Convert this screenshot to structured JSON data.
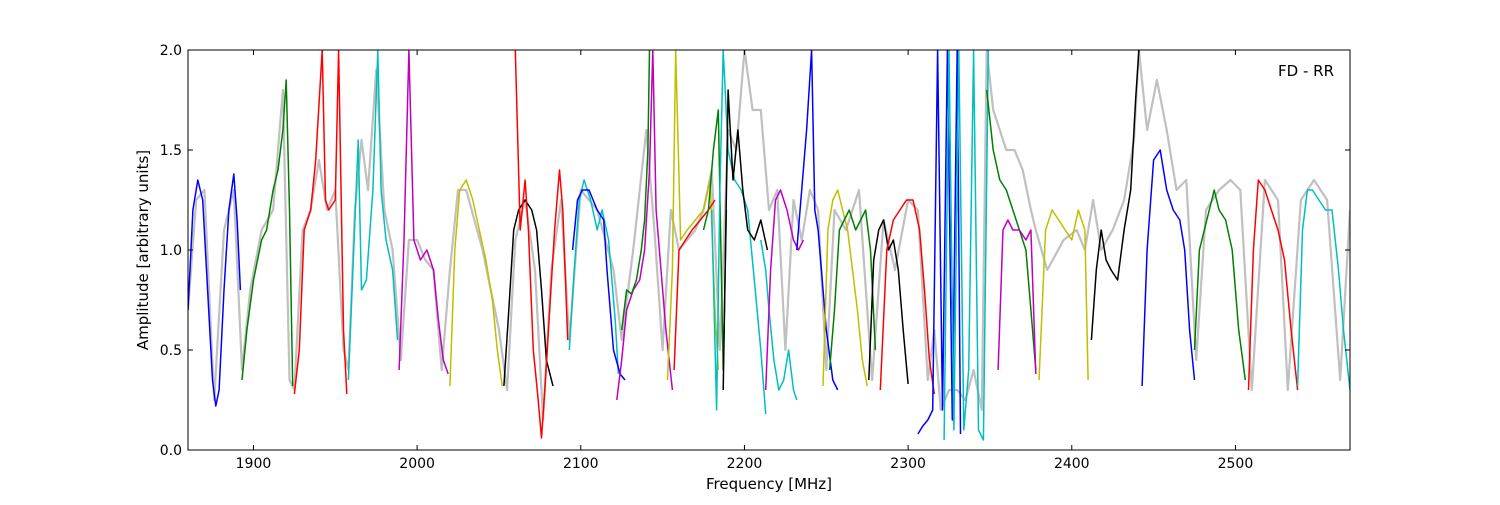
{
  "chart_data": {
    "type": "line",
    "title": "",
    "annotation": "FD - RR",
    "xlabel": "Frequency [MHz]",
    "ylabel": "Amplitude [arbitrary units]",
    "xlim": [
      1860,
      2570
    ],
    "ylim": [
      0.0,
      2.0
    ],
    "xticks": [
      1900,
      2000,
      2100,
      2200,
      2300,
      2400,
      2500
    ],
    "yticks": [
      0.0,
      0.5,
      1.0,
      1.5,
      2.0
    ],
    "xtick_labels": [
      "1900",
      "2000",
      "2100",
      "2200",
      "2300",
      "2400",
      "2500"
    ],
    "ytick_labels": [
      "0.0",
      "0.5",
      "1.0",
      "1.5",
      "2.0"
    ],
    "grid": false,
    "colors": {
      "background": "#c0c0c0",
      "blue": "#0000ff",
      "green": "#007f00",
      "red": "#ff0000",
      "cyan": "#00bfbf",
      "magenta": "#bf00bf",
      "yellow": "#bfbf00",
      "black": "#000000"
    },
    "background_trace": {
      "x": [
        1860,
        1865,
        1870,
        1876,
        1882,
        1888,
        1893,
        1898,
        1905,
        1912,
        1918,
        1922,
        1925,
        1930,
        1935,
        1940,
        1945,
        1950,
        1955,
        1958,
        1962,
        1966,
        1970,
        1975,
        1980,
        1985,
        1990,
        1995,
        2000,
        2005,
        2010,
        2015,
        2020,
        2025,
        2030,
        2040,
        2050,
        2055,
        2060,
        2066,
        2072,
        2077,
        2082,
        2088,
        2093,
        2100,
        2110,
        2120,
        2125,
        2132,
        2140,
        2145,
        2150,
        2155,
        2160,
        2165,
        2170,
        2175,
        2180,
        2185,
        2190,
        2195,
        2200,
        2205,
        2210,
        2215,
        2220,
        2225,
        2230,
        2235,
        2240,
        2245,
        2250,
        2255,
        2262,
        2270,
        2278,
        2285,
        2292,
        2300,
        2306,
        2312,
        2316,
        2320,
        2325,
        2330,
        2335,
        2340,
        2345,
        2348,
        2352,
        2356,
        2360,
        2365,
        2370,
        2375,
        2378,
        2385,
        2395,
        2403,
        2408,
        2413,
        2418,
        2425,
        2432,
        2438,
        2441,
        2446,
        2452,
        2458,
        2464,
        2470,
        2476,
        2482,
        2490,
        2497,
        2503,
        2510,
        2518,
        2526,
        2532,
        2540,
        2548,
        2556,
        2564,
        2570
      ],
      "y": [
        0.7,
        1.25,
        1.3,
        0.25,
        1.1,
        1.3,
        0.4,
        0.8,
        1.1,
        1.2,
        1.8,
        0.35,
        0.3,
        1.1,
        1.2,
        1.45,
        1.2,
        1.3,
        0.5,
        0.4,
        1.2,
        1.55,
        1.3,
        1.9,
        1.2,
        1.0,
        0.45,
        1.05,
        1.05,
        0.95,
        0.9,
        0.4,
        0.9,
        1.3,
        1.3,
        1.0,
        0.6,
        0.3,
        1.05,
        1.25,
        0.9,
        0.15,
        0.9,
        1.25,
        0.55,
        1.3,
        1.2,
        0.9,
        0.55,
        1.0,
        1.6,
        1.1,
        0.5,
        1.2,
        1.0,
        1.05,
        1.1,
        1.2,
        1.4,
        0.5,
        1.6,
        1.5,
        2.0,
        1.7,
        1.7,
        1.2,
        1.3,
        0.5,
        1.25,
        1.05,
        1.3,
        1.2,
        0.4,
        1.2,
        1.1,
        1.3,
        0.35,
        1.15,
        0.9,
        1.25,
        1.2,
        0.35,
        0.6,
        0.2,
        0.3,
        0.3,
        0.25,
        0.4,
        0.2,
        2.0,
        1.7,
        1.6,
        1.5,
        1.5,
        1.4,
        1.2,
        1.1,
        0.9,
        1.05,
        1.1,
        1.0,
        1.25,
        1.0,
        1.1,
        1.25,
        1.55,
        2.0,
        1.6,
        1.85,
        1.6,
        1.3,
        1.35,
        0.45,
        1.2,
        1.3,
        1.35,
        1.3,
        0.3,
        1.35,
        1.25,
        0.3,
        1.25,
        1.35,
        1.25,
        0.35,
        1.2
      ]
    },
    "series": [
      {
        "color": "blue",
        "x": [
          1860,
          1863,
          1866,
          1869,
          1872,
          1875,
          1877,
          1879,
          1882,
          1885,
          1888,
          1890,
          1892
        ],
        "y": [
          0.7,
          1.2,
          1.35,
          1.25,
          0.8,
          0.35,
          0.22,
          0.3,
          0.8,
          1.2,
          1.38,
          1.15,
          0.8
        ]
      },
      {
        "color": "green",
        "x": [
          1893,
          1896,
          1900,
          1905,
          1908,
          1912,
          1915,
          1918,
          1920,
          1922,
          1924
        ],
        "y": [
          0.35,
          0.6,
          0.85,
          1.05,
          1.1,
          1.3,
          1.4,
          1.6,
          1.85,
          1.2,
          0.32
        ]
      },
      {
        "color": "red",
        "x": [
          1925,
          1928,
          1931,
          1935,
          1938,
          1942,
          1944,
          1946,
          1950,
          1952,
          1955,
          1957
        ],
        "y": [
          0.28,
          0.5,
          1.1,
          1.2,
          1.45,
          2.0,
          1.25,
          1.2,
          1.25,
          2.0,
          0.6,
          0.28
        ]
      },
      {
        "color": "cyan",
        "x": [
          1958,
          1961,
          1964,
          1966,
          1969,
          1973,
          1976,
          1978,
          1981,
          1985,
          1988
        ],
        "y": [
          0.35,
          0.95,
          1.55,
          0.8,
          0.85,
          1.3,
          2.0,
          1.3,
          1.05,
          0.9,
          0.55
        ]
      },
      {
        "color": "magenta",
        "x": [
          1989,
          1992,
          1995,
          1998,
          2002,
          2006,
          2010,
          2013,
          2016,
          2019
        ],
        "y": [
          0.4,
          1.05,
          2.0,
          1.05,
          0.95,
          1.0,
          0.9,
          0.65,
          0.45,
          0.38
        ]
      },
      {
        "color": "yellow",
        "x": [
          2020,
          2023,
          2026,
          2030,
          2034,
          2038,
          2042,
          2046,
          2049,
          2052
        ],
        "y": [
          0.32,
          1.0,
          1.3,
          1.35,
          1.25,
          1.1,
          0.95,
          0.75,
          0.5,
          0.32
        ]
      },
      {
        "color": "black",
        "x": [
          2053,
          2056,
          2059,
          2062,
          2066,
          2070,
          2073,
          2076,
          2079,
          2083
        ],
        "y": [
          0.32,
          0.7,
          1.1,
          1.2,
          1.25,
          1.2,
          1.1,
          0.8,
          0.45,
          0.32
        ]
      },
      {
        "color": "red",
        "x": [
          2060,
          2063,
          2066,
          2068,
          2071,
          2074,
          2076,
          2078,
          2081,
          2084,
          2087,
          2089,
          2092
        ],
        "y": [
          2.0,
          1.1,
          1.35,
          1.1,
          0.5,
          0.25,
          0.06,
          0.3,
          0.7,
          1.1,
          1.4,
          1.2,
          0.55
        ]
      },
      {
        "color": "cyan",
        "x": [
          2093,
          2096,
          2099,
          2102,
          2106,
          2110,
          2113,
          2117,
          2121,
          2123
        ],
        "y": [
          0.5,
          0.9,
          1.25,
          1.35,
          1.25,
          1.1,
          1.2,
          1.05,
          0.65,
          0.38
        ]
      },
      {
        "color": "blue",
        "x": [
          2095,
          2098,
          2101,
          2105,
          2110,
          2114,
          2116,
          2120,
          2124,
          2127
        ],
        "y": [
          1.0,
          1.25,
          1.3,
          1.3,
          1.2,
          1.15,
          0.9,
          0.5,
          0.38,
          0.35
        ]
      },
      {
        "color": "magenta",
        "x": [
          2122,
          2125,
          2128,
          2132,
          2136,
          2139,
          2142,
          2144,
          2146,
          2149,
          2152,
          2156
        ],
        "y": [
          0.25,
          0.45,
          0.7,
          0.8,
          0.85,
          1.0,
          1.4,
          2.0,
          1.2,
          0.9,
          0.6,
          0.3
        ]
      },
      {
        "color": "green",
        "x": [
          2125,
          2128,
          2131,
          2134,
          2137,
          2139,
          2141,
          2142
        ],
        "y": [
          0.6,
          0.8,
          0.78,
          0.85,
          1.0,
          1.15,
          1.5,
          2.0
        ]
      },
      {
        "color": "yellow",
        "x": [
          2153,
          2156,
          2158,
          2161,
          2165,
          2170,
          2175,
          2179,
          2182,
          2184
        ],
        "y": [
          0.35,
          0.9,
          2.0,
          1.05,
          1.1,
          1.15,
          1.2,
          1.35,
          0.7,
          0.4
        ]
      },
      {
        "color": "red",
        "x": [
          2157,
          2160,
          2164,
          2168,
          2173,
          2178,
          2182
        ],
        "y": [
          0.4,
          1.0,
          1.05,
          1.1,
          1.15,
          1.2,
          1.25
        ]
      },
      {
        "color": "green",
        "x": [
          2175,
          2178,
          2181,
          2184,
          2187,
          2189
        ],
        "y": [
          1.1,
          1.2,
          1.5,
          1.7,
          0.4,
          1.2
        ]
      },
      {
        "color": "cyan",
        "x": [
          2180,
          2183,
          2185,
          2187,
          2190,
          2194,
          2198,
          2202,
          2206,
          2210,
          2213
        ],
        "y": [
          1.2,
          0.2,
          1.3,
          2.0,
          1.5,
          1.35,
          1.3,
          1.2,
          0.85,
          0.5,
          0.18
        ]
      },
      {
        "color": "black",
        "x": [
          2187,
          2190,
          2193,
          2196,
          2199,
          2202,
          2206,
          2210,
          2214
        ],
        "y": [
          0.3,
          1.8,
          1.35,
          1.6,
          1.3,
          1.1,
          1.05,
          1.15,
          1.0
        ]
      },
      {
        "color": "cyan",
        "x": [
          2210,
          2213,
          2215,
          2218,
          2221,
          2224,
          2227,
          2230,
          2232
        ],
        "y": [
          1.05,
          0.9,
          0.7,
          0.45,
          0.3,
          0.35,
          0.5,
          0.3,
          0.25
        ]
      },
      {
        "color": "magenta",
        "x": [
          2213,
          2216,
          2219,
          2222,
          2226,
          2230,
          2233,
          2236
        ],
        "y": [
          0.3,
          0.9,
          1.25,
          1.3,
          1.2,
          1.05,
          1.0,
          1.05
        ]
      },
      {
        "color": "blue",
        "x": [
          2232,
          2235,
          2238,
          2241,
          2243,
          2245,
          2247,
          2250,
          2254,
          2257
        ],
        "y": [
          1.0,
          1.3,
          1.6,
          2.0,
          1.2,
          1.1,
          0.9,
          0.6,
          0.35,
          0.3
        ]
      },
      {
        "color": "yellow",
        "x": [
          2248,
          2251,
          2254,
          2257,
          2260,
          2263,
          2266,
          2269,
          2272,
          2275
        ],
        "y": [
          0.32,
          1.1,
          1.25,
          1.3,
          1.2,
          1.1,
          0.9,
          0.7,
          0.45,
          0.32
        ]
      },
      {
        "color": "green",
        "x": [
          2252,
          2255,
          2258,
          2261,
          2264,
          2268,
          2271,
          2274,
          2277,
          2280
        ],
        "y": [
          0.4,
          0.7,
          1.1,
          1.15,
          1.2,
          1.1,
          1.15,
          1.2,
          1.0,
          0.5
        ]
      },
      {
        "color": "black",
        "x": [
          2276,
          2279,
          2282,
          2285,
          2288,
          2291,
          2294,
          2297,
          2300
        ],
        "y": [
          0.35,
          0.95,
          1.1,
          1.15,
          1.0,
          1.05,
          0.9,
          0.6,
          0.33
        ]
      },
      {
        "color": "red",
        "x": [
          2283,
          2287,
          2291,
          2295,
          2299,
          2303,
          2307,
          2310,
          2313,
          2316
        ],
        "y": [
          0.3,
          1.0,
          1.15,
          1.2,
          1.25,
          1.25,
          1.1,
          0.8,
          0.45,
          0.28
        ]
      },
      {
        "color": "blue",
        "x": [
          2306,
          2309,
          2312,
          2315,
          2318,
          2321,
          2324,
          2327,
          2330,
          2332
        ],
        "y": [
          0.08,
          0.12,
          0.15,
          0.2,
          2.0,
          0.2,
          2.0,
          0.15,
          2.0,
          0.08
        ]
      },
      {
        "color": "cyan",
        "x": [
          2322,
          2325,
          2328,
          2331,
          2334,
          2337,
          2340,
          2343,
          2346,
          2349
        ],
        "y": [
          0.05,
          2.0,
          0.1,
          2.0,
          0.1,
          0.4,
          2.0,
          0.1,
          0.05,
          2.0
        ]
      },
      {
        "color": "green",
        "x": [
          2348,
          2352,
          2356,
          2360,
          2364,
          2368,
          2372,
          2375,
          2378
        ],
        "y": [
          1.8,
          1.5,
          1.35,
          1.3,
          1.2,
          1.1,
          1.0,
          0.7,
          0.4
        ]
      },
      {
        "color": "magenta",
        "x": [
          2355,
          2358,
          2361,
          2364,
          2368,
          2372,
          2375,
          2378
        ],
        "y": [
          0.4,
          1.1,
          1.15,
          1.1,
          1.1,
          1.05,
          1.1,
          0.38
        ]
      },
      {
        "color": "yellow",
        "x": [
          2380,
          2384,
          2388,
          2392,
          2396,
          2400,
          2404,
          2408,
          2410
        ],
        "y": [
          0.35,
          1.1,
          1.2,
          1.15,
          1.1,
          1.05,
          1.2,
          1.1,
          0.35
        ]
      },
      {
        "color": "black",
        "x": [
          2412,
          2415,
          2418,
          2421,
          2424,
          2428,
          2432,
          2436,
          2439,
          2441
        ],
        "y": [
          0.55,
          0.9,
          1.1,
          0.95,
          0.9,
          0.85,
          1.1,
          1.3,
          1.75,
          2.0
        ]
      },
      {
        "color": "blue",
        "x": [
          2443,
          2446,
          2450,
          2454,
          2458,
          2462,
          2466,
          2469,
          2472,
          2475
        ],
        "y": [
          0.32,
          1.0,
          1.45,
          1.5,
          1.3,
          1.2,
          1.15,
          1.0,
          0.6,
          0.35
        ]
      },
      {
        "color": "green",
        "x": [
          2475,
          2478,
          2481,
          2484,
          2487,
          2490,
          2494,
          2498,
          2502,
          2506
        ],
        "y": [
          0.5,
          1.0,
          1.1,
          1.2,
          1.3,
          1.2,
          1.15,
          1.0,
          0.6,
          0.35
        ]
      },
      {
        "color": "red",
        "x": [
          2508,
          2511,
          2514,
          2518,
          2522,
          2526,
          2530,
          2534,
          2538
        ],
        "y": [
          0.3,
          1.0,
          1.35,
          1.3,
          1.2,
          1.1,
          0.95,
          0.6,
          0.3
        ]
      },
      {
        "color": "cyan",
        "x": [
          2538,
          2541,
          2544,
          2547,
          2551,
          2555,
          2559,
          2563,
          2566,
          2570
        ],
        "y": [
          0.32,
          1.1,
          1.3,
          1.3,
          1.25,
          1.2,
          1.2,
          0.9,
          0.6,
          0.3
        ]
      }
    ]
  }
}
